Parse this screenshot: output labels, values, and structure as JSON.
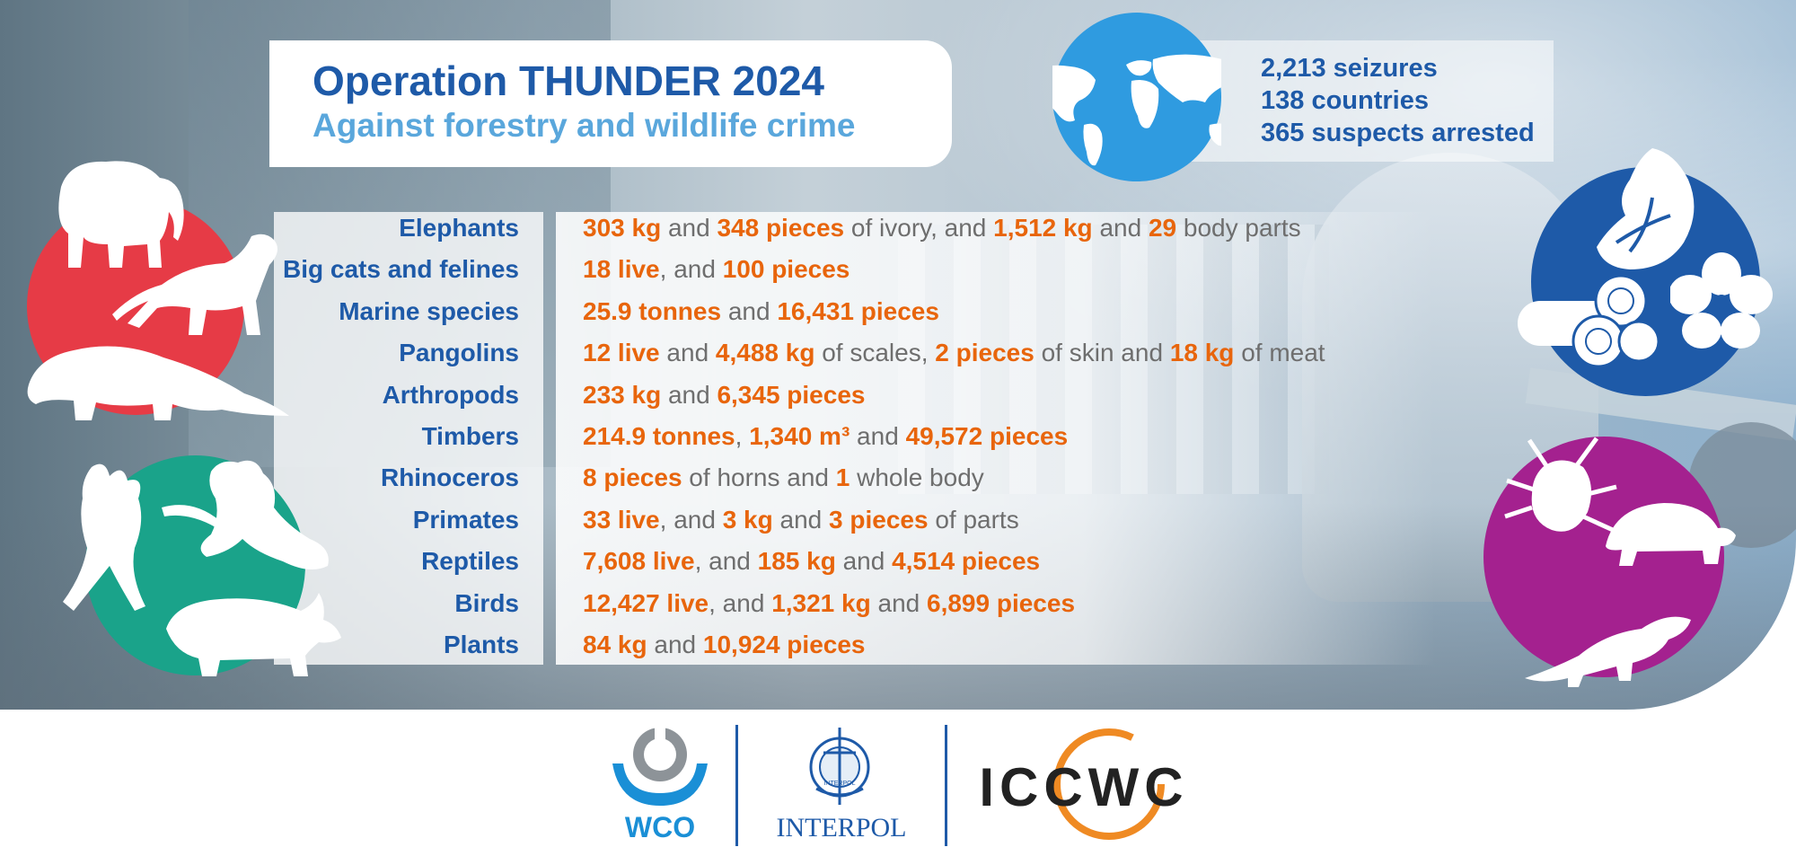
{
  "title": {
    "line1": "Operation THUNDER 2024",
    "line2": "Against forestry and wildlife crime"
  },
  "stats": [
    "2,213 seizures",
    "138 countries",
    "365 suspects arrested"
  ],
  "colors": {
    "title_blue": "#1e5aa8",
    "subtitle_blue": "#5aa7dc",
    "highlight_orange": "#e8650c",
    "body_gray": "#6e6e6e",
    "red_circle": "#e63b46",
    "teal_circle": "#1aa38a",
    "blue_circle": "#1e5aa8",
    "purple_circle": "#a4218f",
    "globe": "#2f9be0"
  },
  "rows": [
    {
      "label": "Elephants",
      "parts": [
        {
          "t": "303 kg",
          "h": true
        },
        {
          "t": " and ",
          "h": false
        },
        {
          "t": "348 pieces",
          "h": true
        },
        {
          "t": " of ivory, and ",
          "h": false
        },
        {
          "t": "1,512 kg",
          "h": true
        },
        {
          "t": " and ",
          "h": false
        },
        {
          "t": "29",
          "h": true
        },
        {
          "t": " body parts",
          "h": false
        }
      ]
    },
    {
      "label": "Big cats and felines",
      "parts": [
        {
          "t": "18 live",
          "h": true
        },
        {
          "t": ", and ",
          "h": false
        },
        {
          "t": "100 pieces",
          "h": true
        }
      ]
    },
    {
      "label": "Marine species",
      "parts": [
        {
          "t": "25.9 tonnes",
          "h": true
        },
        {
          "t": " and ",
          "h": false
        },
        {
          "t": "16,431 pieces",
          "h": true
        }
      ]
    },
    {
      "label": "Pangolins",
      "parts": [
        {
          "t": "12 live",
          "h": true
        },
        {
          "t": " and ",
          "h": false
        },
        {
          "t": "4,488 kg",
          "h": true
        },
        {
          "t": " of scales, ",
          "h": false
        },
        {
          "t": "2 pieces",
          "h": true
        },
        {
          "t": " of skin and ",
          "h": false
        },
        {
          "t": "18 kg",
          "h": true
        },
        {
          "t": " of meat",
          "h": false
        }
      ]
    },
    {
      "label": "Arthropods",
      "parts": [
        {
          "t": "233 kg",
          "h": true
        },
        {
          "t": " and ",
          "h": false
        },
        {
          "t": "6,345 pieces",
          "h": true
        }
      ]
    },
    {
      "label": "Timbers",
      "parts": [
        {
          "t": "214.9 tonnes",
          "h": true
        },
        {
          "t": ", ",
          "h": false
        },
        {
          "t": "1,340 m³",
          "h": true
        },
        {
          "t": " and ",
          "h": false
        },
        {
          "t": "49,572 pieces",
          "h": true
        }
      ]
    },
    {
      "label": "Rhinoceros",
      "parts": [
        {
          "t": "8 pieces",
          "h": true
        },
        {
          "t": " of horns and ",
          "h": false
        },
        {
          "t": "1",
          "h": true
        },
        {
          "t": " whole body",
          "h": false
        }
      ]
    },
    {
      "label": "Primates",
      "parts": [
        {
          "t": "33 live",
          "h": true
        },
        {
          "t": ", and ",
          "h": false
        },
        {
          "t": "3 kg",
          "h": true
        },
        {
          "t": " and ",
          "h": false
        },
        {
          "t": "3 pieces",
          "h": true
        },
        {
          "t": " of parts",
          "h": false
        }
      ]
    },
    {
      "label": "Reptiles",
      "parts": [
        {
          "t": "7,608 live",
          "h": true
        },
        {
          "t": ", and ",
          "h": false
        },
        {
          "t": "185 kg",
          "h": true
        },
        {
          "t": " and ",
          "h": false
        },
        {
          "t": "4,514 pieces",
          "h": true
        }
      ]
    },
    {
      "label": "Birds",
      "parts": [
        {
          "t": "12,427 live",
          "h": true
        },
        {
          "t": ", and ",
          "h": false
        },
        {
          "t": "1,321 kg",
          "h": true
        },
        {
          "t": " and ",
          "h": false
        },
        {
          "t": "6,899 pieces",
          "h": true
        }
      ]
    },
    {
      "label": "Plants",
      "parts": [
        {
          "t": "84 kg",
          "h": true
        },
        {
          "t": " and ",
          "h": false
        },
        {
          "t": "10,924 pieces",
          "h": true
        }
      ]
    }
  ],
  "logos": {
    "wco": "WCO",
    "interpol": "INTERPOL",
    "iccwc": "ICCWC",
    "interpol_seal": "INTERPOL"
  },
  "icons": [
    "elephant-icon",
    "big-cat-icon",
    "pangolin-icon",
    "cockatoo-icon",
    "primate-icon",
    "rhinoceros-icon",
    "seashell-icon",
    "timber-logs-icon",
    "hibiscus-icon",
    "beetle-icon",
    "turtle-icon",
    "iguana-icon",
    "world-map-icon"
  ]
}
